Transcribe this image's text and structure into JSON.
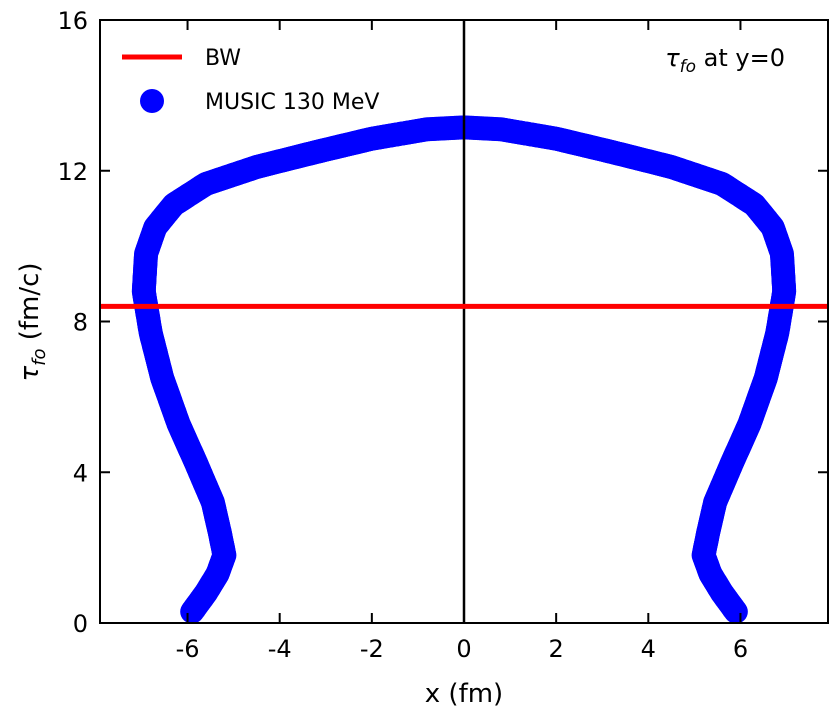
{
  "chart_data": {
    "type": "scatter",
    "xlabel": "x (fm)",
    "ylabel": {
      "symbol": "τ",
      "subscript": "fo",
      "unit": " (fm/c)"
    },
    "xlim": [
      -7.9,
      7.9
    ],
    "ylim": [
      0,
      16
    ],
    "xticks": [
      -6,
      -4,
      -2,
      0,
      2,
      4,
      6
    ],
    "xtick_labels": [
      "-6",
      "-4",
      "-2",
      "0",
      "2",
      "4",
      "6"
    ],
    "yticks": [
      0,
      4,
      8,
      12,
      16
    ],
    "ytick_labels": [
      "0",
      "4",
      "8",
      "12",
      "16"
    ],
    "vline_x": 0,
    "annotation": {
      "symbol": "τ",
      "subscript": "fo",
      "text": " at y=0"
    },
    "legend": {
      "placement": "top-left",
      "entries": [
        "BW",
        "MUSIC 130 MeV"
      ]
    },
    "colors": {
      "BW": "#ff0000",
      "MUSIC": "#0000ff",
      "axis": "#000000"
    },
    "series": [
      {
        "name": "BW",
        "type": "hline",
        "y": 8.4
      },
      {
        "name": "MUSIC 130 MeV",
        "type": "scatter",
        "x": [
          -5.9,
          -5.6,
          -5.35,
          -5.2,
          -5.3,
          -5.45,
          -5.8,
          -6.2,
          -6.55,
          -6.8,
          -6.95,
          -6.9,
          -6.7,
          -6.3,
          -5.6,
          -4.5,
          -3.2,
          -2.0,
          -0.8,
          0.0,
          0.8,
          2.0,
          3.2,
          4.5,
          5.6,
          6.3,
          6.7,
          6.9,
          6.95,
          6.8,
          6.55,
          6.2,
          5.8,
          5.45,
          5.3,
          5.2,
          5.35,
          5.6,
          5.9
        ],
        "y": [
          0.3,
          0.8,
          1.3,
          1.8,
          2.4,
          3.2,
          4.2,
          5.3,
          6.5,
          7.7,
          8.8,
          9.8,
          10.5,
          11.1,
          11.65,
          12.1,
          12.5,
          12.85,
          13.1,
          13.15,
          13.1,
          12.85,
          12.5,
          12.1,
          11.65,
          11.1,
          10.5,
          9.8,
          8.8,
          7.7,
          6.5,
          5.3,
          4.2,
          3.2,
          2.4,
          1.8,
          1.3,
          0.8,
          0.3
        ]
      }
    ]
  }
}
